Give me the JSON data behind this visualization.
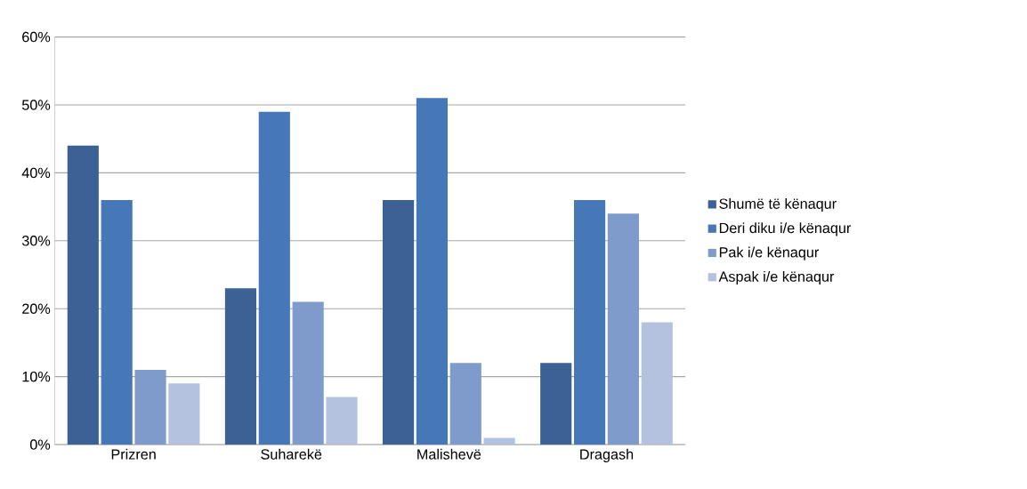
{
  "chart_data": {
    "type": "bar",
    "categories": [
      "Prizren",
      "Suharekë",
      "Malishevë",
      "Dragash"
    ],
    "series": [
      {
        "name": "Shumë të kënaqur",
        "color": "#3b6195",
        "values": [
          44,
          23,
          36,
          12
        ]
      },
      {
        "name": "Deri diku i/e kënaqur",
        "color": "#4677b6",
        "values": [
          36,
          49,
          51,
          36
        ]
      },
      {
        "name": "Pak i/e kënaqur",
        "color": "#7f9bcc",
        "values": [
          11,
          21,
          12,
          34
        ]
      },
      {
        "name": "Aspak i/e kënaqur",
        "color": "#b4c1df",
        "values": [
          9,
          7,
          1,
          18
        ]
      }
    ],
    "ylim": [
      0,
      60
    ],
    "yticks": [
      {
        "value": 0,
        "label": "0%"
      },
      {
        "value": 10,
        "label": "10%"
      },
      {
        "value": 20,
        "label": "20%"
      },
      {
        "value": 30,
        "label": "30%"
      },
      {
        "value": 40,
        "label": "40%"
      },
      {
        "value": 50,
        "label": "50%"
      },
      {
        "value": 60,
        "label": "60%"
      }
    ],
    "grid": "y",
    "legend": "right"
  }
}
